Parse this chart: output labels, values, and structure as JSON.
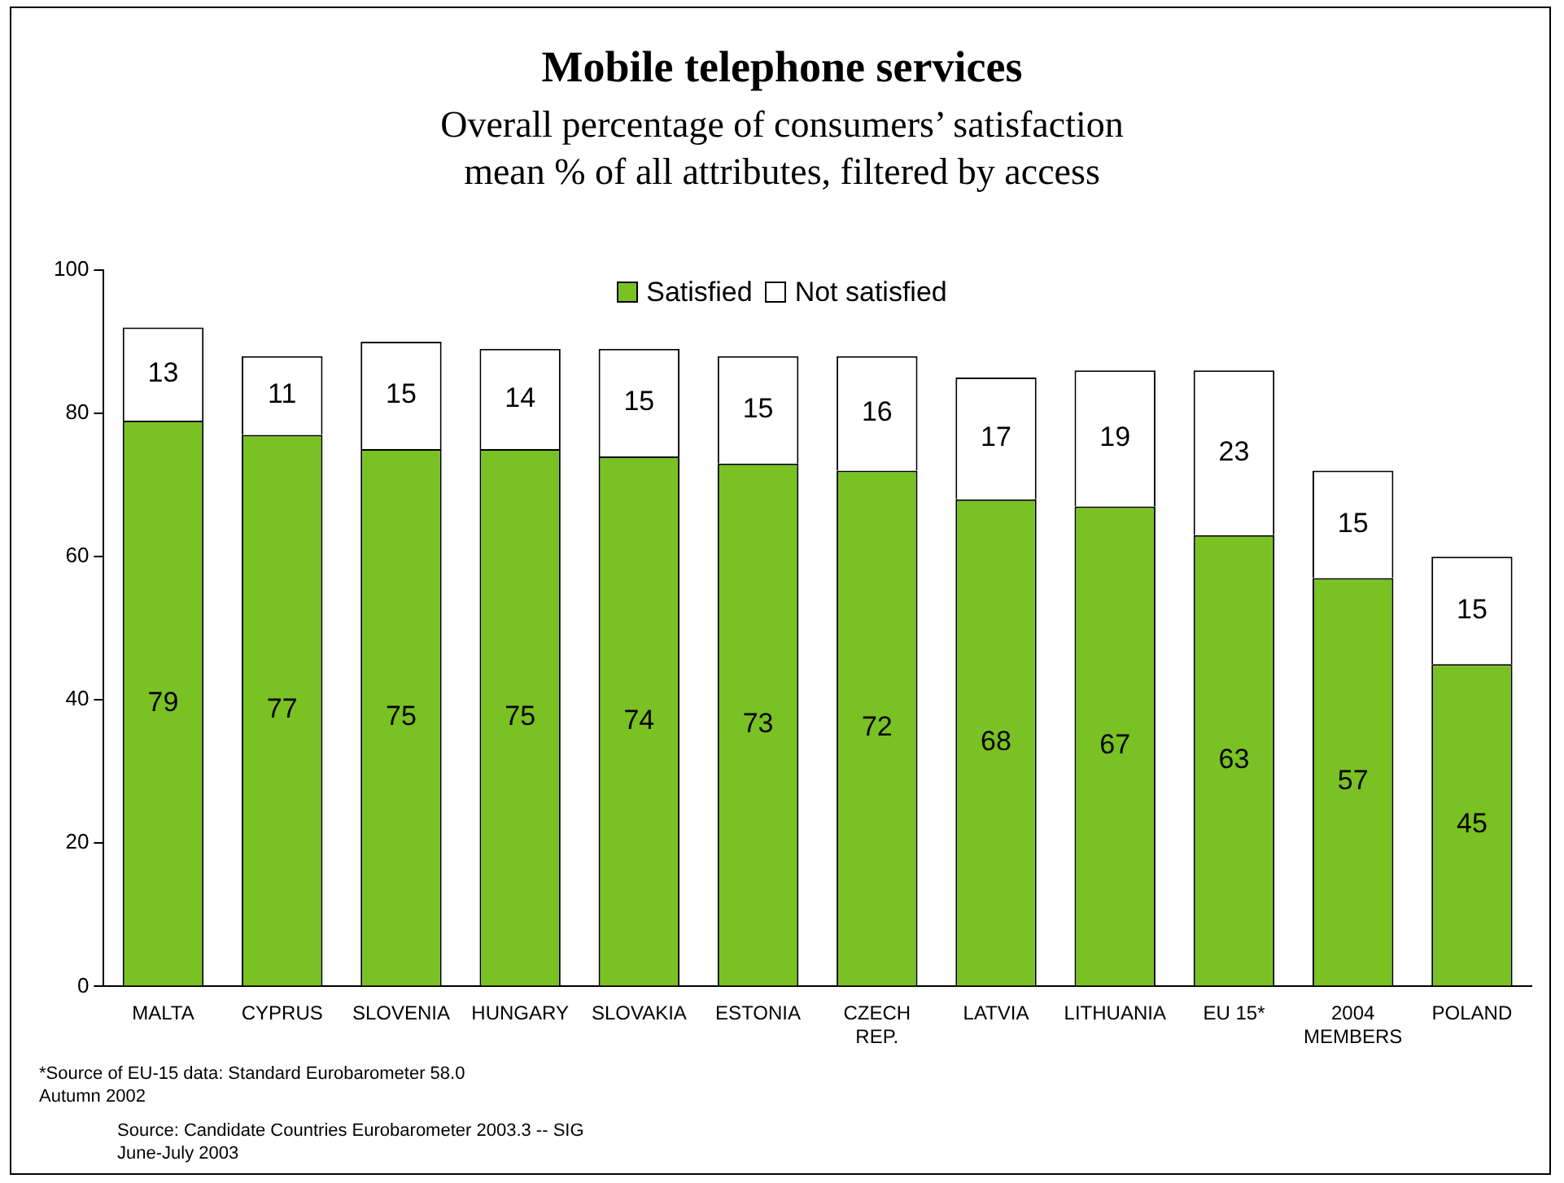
{
  "chart_data": {
    "type": "bar",
    "title": "Mobile telephone services",
    "subtitle": "Overall percentage of consumers’ satisfaction\nmean % of all attributes, filtered by access",
    "categories": [
      "MALTA",
      "CYPRUS",
      "SLOVENIA",
      "HUNGARY",
      "SLOVAKIA",
      "ESTONIA",
      "CZECH REP.",
      "LATVIA",
      "LITHUANIA",
      "EU 15*",
      "2004 MEMBERS",
      "POLAND"
    ],
    "stacked": true,
    "series": [
      {
        "name": "Satisfied",
        "color": "#7ac124",
        "values": [
          79,
          77,
          75,
          75,
          74,
          73,
          72,
          68,
          67,
          63,
          57,
          45
        ]
      },
      {
        "name": "Not satisfied",
        "color": "#ffffff",
        "values": [
          13,
          11,
          15,
          14,
          15,
          15,
          16,
          17,
          19,
          23,
          15,
          15
        ]
      }
    ],
    "ylim": [
      0,
      100
    ],
    "yticks": [
      0,
      20,
      40,
      60,
      80,
      100
    ],
    "grid": false,
    "legend": "top",
    "data_labels": true,
    "annotations": [
      "*Source of EU-15 data: Standard Eurobarometer 58.0\nAutumn 2002",
      "Source: Candidate Countries Eurobarometer 2003.3 -- SIG\nJune-July 2003"
    ]
  }
}
